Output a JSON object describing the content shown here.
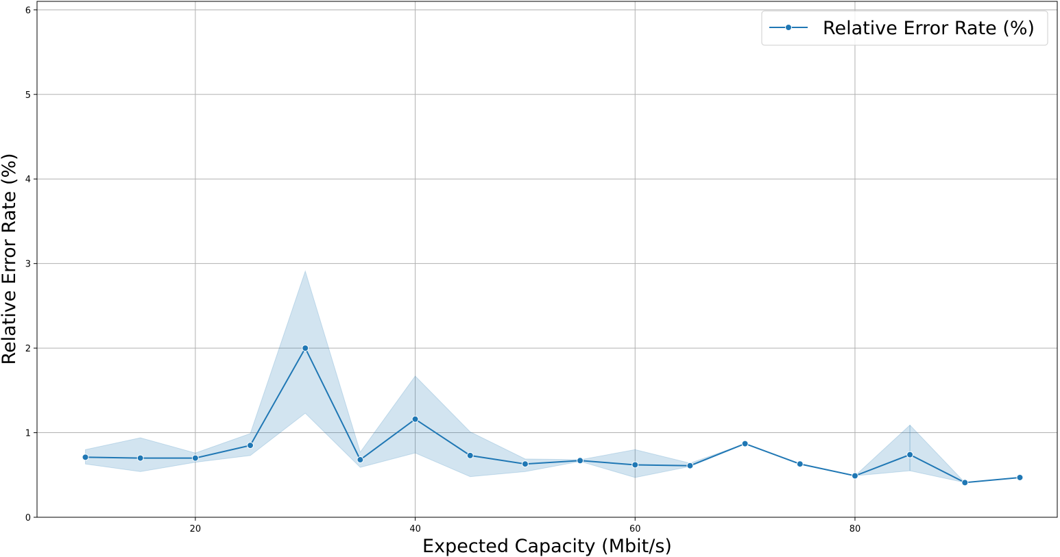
{
  "chart_data": {
    "type": "line",
    "title": "",
    "xlabel": "Expected Capacity (Mbit/s)",
    "ylabel": "Relative Error Rate (%)",
    "xlim": [
      5.6,
      98.4
    ],
    "ylim": [
      0,
      6.1
    ],
    "xticks": [
      20,
      40,
      60,
      80
    ],
    "yticks": [
      0,
      1,
      2,
      3,
      4,
      5,
      6
    ],
    "grid": true,
    "legend_position": "top-right",
    "series": [
      {
        "name": "Relative Error Rate (%)",
        "color": "#1f77b4",
        "marker": "circle",
        "x": [
          10,
          15,
          20,
          25,
          30,
          35,
          40,
          45,
          50,
          55,
          60,
          65,
          70,
          75,
          80,
          85,
          90,
          95
        ],
        "y": [
          0.71,
          0.7,
          0.7,
          0.85,
          2.0,
          0.68,
          1.16,
          0.73,
          0.63,
          0.67,
          0.62,
          0.61,
          0.87,
          0.63,
          0.49,
          0.74,
          0.41,
          0.47
        ],
        "ci_lower": [
          0.63,
          0.54,
          0.65,
          0.73,
          1.23,
          0.59,
          0.76,
          0.48,
          0.54,
          0.66,
          0.47,
          0.6,
          0.87,
          0.63,
          0.49,
          0.55,
          0.41,
          0.47
        ],
        "ci_upper": [
          0.8,
          0.94,
          0.76,
          0.99,
          2.91,
          0.77,
          1.67,
          1.01,
          0.69,
          0.68,
          0.8,
          0.64,
          0.87,
          0.63,
          0.49,
          1.09,
          0.41,
          0.47
        ]
      }
    ]
  }
}
